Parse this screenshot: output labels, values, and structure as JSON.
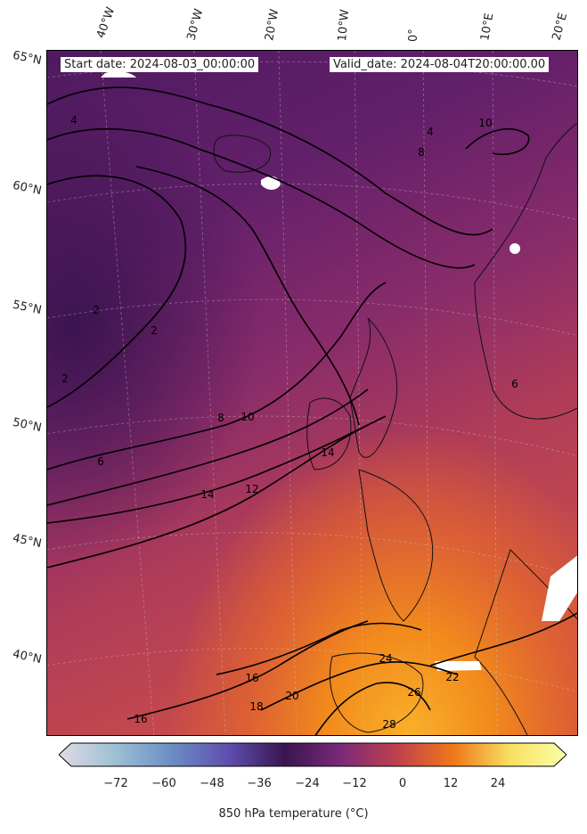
{
  "map": {
    "start_date_text": "Start date: 2024-08-03_00:00:00",
    "valid_date_text": "Valid_date: 2024-08-04T20:00:00.00",
    "lon_labels": [
      "40°W",
      "30°W",
      "20°W",
      "10°W",
      "0°",
      "10°E",
      "20°E"
    ],
    "lat_labels": [
      "65°N",
      "60°N",
      "55°N",
      "50°N",
      "45°N",
      "40°N"
    ],
    "contour_labels": [
      "4",
      "4",
      "2",
      "2",
      "2",
      "6",
      "8",
      "10",
      "12",
      "14",
      "14",
      "16",
      "16",
      "18",
      "20",
      "22",
      "24",
      "26",
      "28",
      "10",
      "8",
      "6"
    ]
  },
  "colorbar": {
    "ticks": [
      "−72",
      "−60",
      "−48",
      "−36",
      "−24",
      "−12",
      "0",
      "12",
      "24"
    ],
    "label": "850 hPa temperature (°C)",
    "colors": [
      "#e0dbe4",
      "#9cc0d4",
      "#6b8ec4",
      "#5f4fb0",
      "#3a1550",
      "#7a2a78",
      "#c0404e",
      "#f07818",
      "#f8e060",
      "#fbffa8"
    ]
  }
}
